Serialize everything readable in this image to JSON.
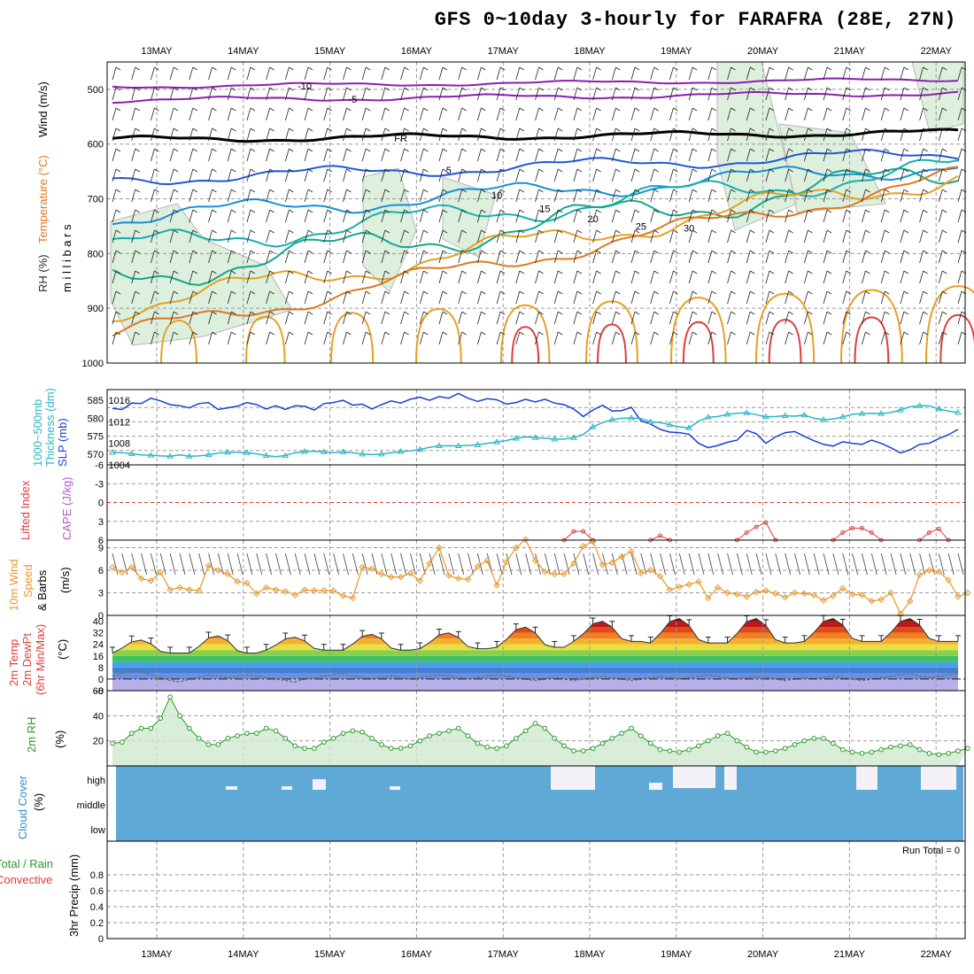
{
  "title": "GFS 0~10day 3-hourly for FARAFRA (28E, 27N)",
  "dates": [
    "13MAY",
    "14MAY",
    "15MAY",
    "16MAY",
    "17MAY",
    "18MAY",
    "19MAY",
    "20MAY",
    "21MAY",
    "22MAY"
  ],
  "run_total_label": "Run Total = 0",
  "colors": {
    "slp": "#1a3fd6",
    "thickness": "#2bb7c7",
    "li": "#e03b3b",
    "wind": "#e8962a",
    "rh": "#2a9a2a",
    "cloud": "#5fa9d6"
  },
  "chart_data": [
    {
      "type": "contour",
      "panel": "upper-air",
      "ylabel_left": [
        "Wind (m/s)",
        "Temperature (°C)",
        "RH (%)"
      ],
      "ylabel_right": "millibars",
      "ylim": [
        1000,
        450
      ],
      "yticks": [
        500,
        600,
        700,
        800,
        900,
        1000
      ],
      "contour_labels": [
        "-10",
        "-5",
        "FR",
        "5",
        "10",
        "15",
        "20",
        "25",
        "30"
      ]
    },
    {
      "type": "line",
      "panel": "slp-thickness",
      "ylabel": [
        "1000~500mb",
        "Thickness (dm)",
        "SLP (mb)"
      ],
      "left_ticks": [
        "585",
        "580",
        "575",
        "570"
      ],
      "right_ticks": [
        "1016",
        "1012",
        "1008",
        "1004"
      ],
      "ylim_slp": [
        1004,
        1018
      ],
      "series": [
        {
          "name": "SLP (mb)",
          "values": [
            1014.5,
            1014.3,
            1015.5,
            1015.4,
            1016.4,
            1015.9,
            1015.2,
            1015.0,
            1014.6,
            1015.4,
            1015.6,
            1014.3,
            1014.6,
            1014.9,
            1015.6,
            1015.2,
            1014.4,
            1015.0,
            1014.3,
            1015.0,
            1014.9,
            1014.2,
            1015.4,
            1015.6,
            1016.0,
            1015.1,
            1015.3,
            1014.4,
            1015.2,
            1015.9,
            1015.5,
            1016.2,
            1016.6,
            1016.0,
            1016.7,
            1016.4,
            1017.3,
            1016.4,
            1015.8,
            1016.3,
            1016.1,
            1015.3,
            1015.6,
            1016.2,
            1015.7,
            1016.2,
            1015.5,
            1015.2,
            1014.4,
            1013.0,
            1014.2,
            1015.1,
            1014.0,
            1014.1,
            1014.7,
            1012.2,
            1011.6,
            1010.6,
            1010.1,
            1010.0,
            1009.7,
            1008.0,
            1007.2,
            1007.6,
            1008.2,
            1008.6,
            1010.4,
            1009.8,
            1008.0,
            1009.2,
            1010.0,
            1010.2,
            1009.3,
            1008.5,
            1007.8,
            1007.5,
            1008.3,
            1008.0,
            1007.8,
            1008.6,
            1008.0,
            1007.2,
            1006.2,
            1006.8,
            1007.8,
            1008.0,
            1008.9,
            1009.6,
            1010.6
          ]
        },
        {
          "name": "1000~500mb Thickness (dm)",
          "values": [
            570.5,
            570.4,
            570.1,
            569.8,
            569.7,
            569.5,
            569.4,
            569.8,
            569.4,
            569.5,
            569.8,
            570.3,
            570.5,
            570.5,
            570.4,
            570.1,
            569.6,
            569.3,
            569.6,
            570.4,
            570.7,
            570.8,
            570.6,
            570.4,
            570.6,
            570.4,
            570.0,
            569.9,
            570.0,
            570.4,
            570.7,
            570.9,
            571.3,
            571.9,
            572.3,
            572.3,
            572.3,
            572.4,
            572.6,
            573.0,
            573.4,
            573.8,
            574.4,
            574.8,
            574.6,
            574.4,
            574.2,
            574.2,
            574.6,
            575.5,
            577.6,
            578.8,
            579.6,
            580.0,
            580.1,
            579.9,
            579.0,
            578.8,
            578.2,
            577.6,
            577.3,
            579.2,
            580.3,
            580.5,
            581.1,
            581.4,
            581.5,
            581.0,
            580.4,
            580.5,
            580.7,
            580.6,
            580.9,
            580.0,
            579.6,
            579.8,
            580.4,
            581.1,
            581.3,
            581.4,
            581.3,
            581.6,
            582.3,
            583.2,
            583.5,
            583.5,
            582.6,
            582.0,
            581.6
          ]
        }
      ]
    },
    {
      "type": "line",
      "panel": "lifted-index",
      "ylabel": [
        "Lifted Index",
        "CAPE (J/kg)"
      ],
      "yticks": [
        "-6",
        "-3",
        "0",
        "3",
        "6"
      ],
      "ylim": [
        6,
        -6
      ],
      "series": [
        {
          "name": "Lifted Index",
          "segments": [
            {
              "start": 47,
              "values": [
                6,
                4.6,
                4.6,
                6
              ]
            },
            {
              "start": 56,
              "values": [
                6,
                5.3,
                6
              ]
            },
            {
              "start": 65,
              "values": [
                6,
                4.8,
                3.9,
                3.2,
                6
              ]
            },
            {
              "start": 75,
              "values": [
                6,
                4.8,
                4.1,
                4.1,
                4.8,
                6
              ]
            },
            {
              "start": 84,
              "values": [
                6,
                4.8,
                4.2,
                6
              ]
            }
          ]
        }
      ]
    },
    {
      "type": "line",
      "panel": "10m-wind",
      "ylabel": [
        "10m Wind",
        "Speed",
        "& Barbs",
        "(m/s)"
      ],
      "yticks": [
        "0",
        "3",
        "6",
        "9"
      ],
      "ylim": [
        0,
        10
      ],
      "series": [
        {
          "name": "Speed",
          "values": [
            6.4,
            5.7,
            6.4,
            4.9,
            4.6,
            5.7,
            3.4,
            3.7,
            3.4,
            3.3,
            6.6,
            6.0,
            5.5,
            4.5,
            4.3,
            2.9,
            3.7,
            3.4,
            3.2,
            2.7,
            3.4,
            3.3,
            3.3,
            3.3,
            2.6,
            2.3,
            6.4,
            6.2,
            5.5,
            5.1,
            5.1,
            5.6,
            4.6,
            6.9,
            9.0,
            5.3,
            4.9,
            4.8,
            6.5,
            7.3,
            4.0,
            7.1,
            9.0,
            10.1,
            7.3,
            5.8,
            5.5,
            5.5,
            6.9,
            9.2,
            9.8,
            6.7,
            7.0,
            7.8,
            8.5,
            5.6,
            6.0,
            5.2,
            3.4,
            3.8,
            4.1,
            4.5,
            2.3,
            3.7,
            3.0,
            2.8,
            2.5,
            3.1,
            3.3,
            2.9,
            2.4,
            3.0,
            2.9,
            2.7,
            2.0,
            2.6,
            3.6,
            2.8,
            2.7,
            1.9,
            2.1,
            3.0,
            0.2,
            1.9,
            5.4,
            6.0,
            5.8,
            4.7,
            2.5,
            3.0
          ]
        }
      ]
    },
    {
      "type": "area",
      "panel": "2m-temp",
      "ylabel": [
        "2m Temp",
        "2m DewPt",
        "(6hr Min/Max)",
        "(°C)"
      ],
      "yticks": [
        "-8",
        "0",
        "8",
        "16",
        "24",
        "32",
        "40"
      ],
      "ylim": [
        -8,
        44
      ],
      "series": [
        {
          "name": "2m Temp",
          "daily_max": [
            27,
            30,
            29,
            31,
            32,
            36,
            40,
            42,
            42,
            42
          ],
          "daily_min": [
            18,
            18,
            20,
            20,
            21,
            22,
            26,
            25,
            25,
            26
          ]
        },
        {
          "name": "2m DewPt",
          "values": [
            2,
            4,
            6,
            5,
            3,
            1,
            -1,
            -2,
            0,
            1,
            3,
            2,
            1,
            2,
            3,
            2,
            1,
            0,
            -1,
            -2,
            0,
            1,
            2,
            3,
            4,
            2,
            1,
            0,
            1,
            2,
            1,
            0,
            1,
            2,
            3,
            2,
            1,
            0,
            1,
            2,
            3,
            2,
            1,
            0,
            -1,
            0,
            1,
            0,
            -1,
            0,
            1,
            2,
            1,
            0,
            -1,
            0,
            1,
            2,
            1,
            0,
            1,
            2,
            3,
            2,
            1,
            0,
            1,
            2,
            1,
            0,
            -1,
            0,
            1,
            0,
            1,
            2,
            1,
            0,
            -1,
            0,
            1,
            2,
            3,
            4,
            2,
            1,
            2,
            3,
            4
          ]
        }
      ]
    },
    {
      "type": "area",
      "panel": "2m-rh",
      "ylabel": [
        "2m RH",
        "(%)"
      ],
      "yticks": [
        "20",
        "40",
        "60"
      ],
      "ylim": [
        0,
        60
      ],
      "series": [
        {
          "name": "2m RH",
          "values": [
            18,
            19,
            26,
            30,
            30,
            38,
            55,
            40,
            30,
            22,
            17,
            17,
            22,
            24,
            26,
            26,
            30,
            28,
            22,
            16,
            14,
            14,
            19,
            22,
            26,
            28,
            27,
            22,
            17,
            14,
            14,
            16,
            20,
            24,
            26,
            28,
            30,
            24,
            18,
            15,
            14,
            16,
            22,
            28,
            34,
            30,
            22,
            16,
            12,
            12,
            14,
            18,
            22,
            26,
            30,
            24,
            18,
            13,
            12,
            11,
            13,
            16,
            20,
            24,
            26,
            20,
            15,
            11,
            11,
            12,
            14,
            17,
            20,
            22,
            22,
            18,
            13,
            11,
            10,
            11,
            13,
            15,
            16,
            17,
            13,
            10,
            9,
            10,
            12,
            14
          ]
        }
      ]
    },
    {
      "type": "heatmap",
      "panel": "cloud-cover",
      "ylabel": [
        "Cloud Cover",
        "(%)"
      ],
      "yticks": [
        "high",
        "middle",
        "low"
      ]
    },
    {
      "type": "bar",
      "panel": "3hr-precip",
      "ylabel": [
        "Total / Rain",
        "Convective",
        "3hr Precip (mm)"
      ],
      "yticks": [
        "0",
        "0.2",
        "0.4",
        "0.6",
        "0.8"
      ],
      "ylim": [
        0,
        1
      ],
      "values": []
    }
  ]
}
